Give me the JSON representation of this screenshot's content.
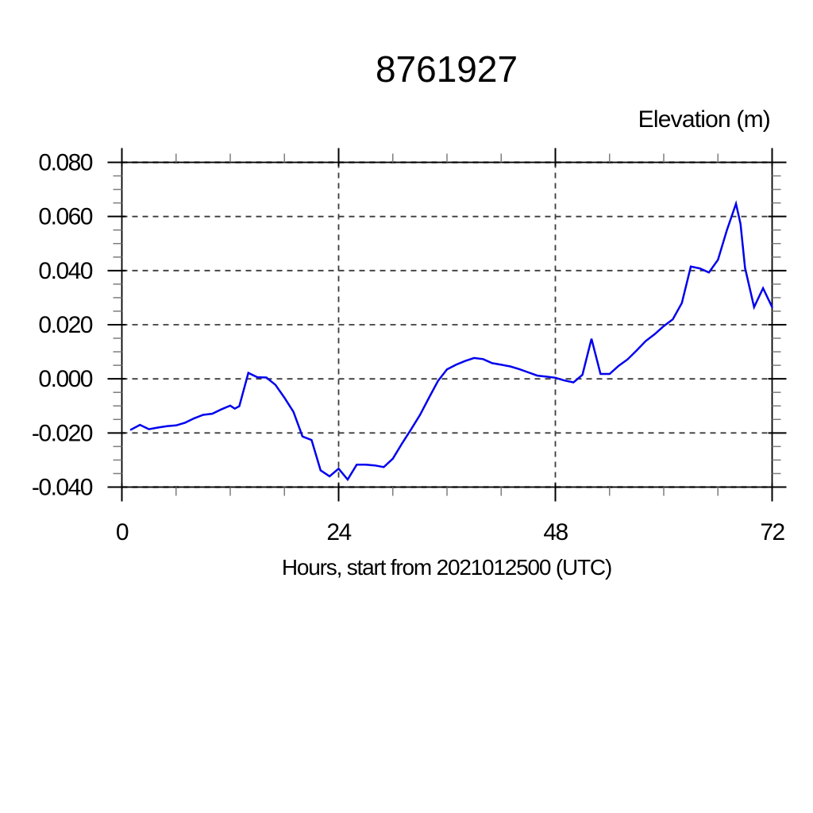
{
  "chart_data": {
    "type": "line",
    "title": "8761927",
    "ylabel": "Elevation (m)",
    "xlabel": "Hours, start from 2021012500 (UTC)",
    "legend": "none",
    "grid": "dashed",
    "line_color": "#0000ee",
    "xlim": [
      0,
      72
    ],
    "ylim": [
      -0.04,
      0.08
    ],
    "x_major_ticks": [
      0,
      24,
      48,
      72
    ],
    "x_tick_labels": [
      "0",
      "24",
      "48",
      "72"
    ],
    "x_minor_step": 6,
    "x_gridlines": [
      24,
      48
    ],
    "y_major_ticks": [
      0.08,
      0.06,
      0.04,
      0.02,
      0.0,
      -0.02,
      -0.04
    ],
    "y_tick_labels": [
      "0.080",
      "0.060",
      "0.040",
      "0.020",
      "0.000",
      "-0.020",
      "-0.040"
    ],
    "y_minor_step": 0.005,
    "series": [
      {
        "name": "elevation",
        "points": [
          [
            1,
            -0.0188
          ],
          [
            2,
            -0.017
          ],
          [
            3,
            -0.0186
          ],
          [
            4,
            -0.018
          ],
          [
            5,
            -0.0175
          ],
          [
            6,
            -0.0172
          ],
          [
            7,
            -0.0162
          ],
          [
            8,
            -0.0146
          ],
          [
            9,
            -0.0133
          ],
          [
            10,
            -0.0129
          ],
          [
            11,
            -0.0113
          ],
          [
            12,
            -0.0099
          ],
          [
            12.5,
            -0.011
          ],
          [
            13,
            -0.0101
          ],
          [
            14,
            0.0022
          ],
          [
            15,
            0.0006
          ],
          [
            16,
            0.0005
          ],
          [
            17,
            -0.0022
          ],
          [
            18,
            -0.007
          ],
          [
            19,
            -0.0122
          ],
          [
            20,
            -0.0213
          ],
          [
            21,
            -0.0226
          ],
          [
            22,
            -0.0338
          ],
          [
            23,
            -0.036
          ],
          [
            24,
            -0.0332
          ],
          [
            25,
            -0.0372
          ],
          [
            26,
            -0.0317
          ],
          [
            27,
            -0.0317
          ],
          [
            28,
            -0.032
          ],
          [
            29,
            -0.0326
          ],
          [
            30,
            -0.0295
          ],
          [
            31,
            -0.024
          ],
          [
            32,
            -0.0188
          ],
          [
            33,
            -0.0134
          ],
          [
            34,
            -0.007
          ],
          [
            35,
            -0.0008
          ],
          [
            36,
            0.0035
          ],
          [
            37,
            0.0052
          ],
          [
            38,
            0.0066
          ],
          [
            39,
            0.0077
          ],
          [
            40,
            0.0073
          ],
          [
            41,
            0.0058
          ],
          [
            42,
            0.0052
          ],
          [
            43,
            0.0046
          ],
          [
            44,
            0.0036
          ],
          [
            45,
            0.0024
          ],
          [
            46,
            0.0012
          ],
          [
            47,
            0.0008
          ],
          [
            48,
            0.0004
          ],
          [
            49,
            -0.0006
          ],
          [
            50,
            -0.0013
          ],
          [
            51,
            0.0015
          ],
          [
            52,
            0.0148
          ],
          [
            53,
            0.0018
          ],
          [
            54,
            0.0018
          ],
          [
            55,
            0.0048
          ],
          [
            56,
            0.0072
          ],
          [
            57,
            0.0105
          ],
          [
            58,
            0.014
          ],
          [
            59,
            0.0165
          ],
          [
            60,
            0.0195
          ],
          [
            61,
            0.022
          ],
          [
            62,
            0.028
          ],
          [
            63,
            0.0415
          ],
          [
            64,
            0.0408
          ],
          [
            65,
            0.0393
          ],
          [
            66,
            0.044
          ],
          [
            67,
            0.055
          ],
          [
            68,
            0.0647
          ],
          [
            68.5,
            0.0573
          ],
          [
            69,
            0.041
          ],
          [
            70,
            0.0265
          ],
          [
            71,
            0.0335
          ],
          [
            72,
            0.0265
          ]
        ]
      }
    ]
  }
}
